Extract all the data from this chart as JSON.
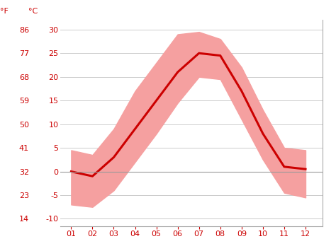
{
  "months": [
    1,
    2,
    3,
    4,
    5,
    6,
    7,
    8,
    9,
    10,
    11,
    12
  ],
  "month_labels": [
    "01",
    "02",
    "03",
    "04",
    "05",
    "06",
    "07",
    "08",
    "09",
    "10",
    "11",
    "12"
  ],
  "avg_temp_c": [
    0.0,
    -1.0,
    3.0,
    9.0,
    15.0,
    21.0,
    25.0,
    24.5,
    17.0,
    8.0,
    1.0,
    0.5
  ],
  "max_temp_c": [
    4.5,
    3.5,
    9.0,
    17.0,
    23.0,
    29.0,
    29.5,
    28.0,
    22.0,
    13.0,
    5.0,
    4.5
  ],
  "min_temp_c": [
    -7.0,
    -7.5,
    -4.0,
    2.0,
    8.0,
    14.5,
    20.0,
    19.5,
    11.0,
    2.5,
    -4.5,
    -5.5
  ],
  "line_color": "#cc0000",
  "fill_color": "#f5a0a0",
  "zero_line_color": "#999999",
  "background_color": "#ffffff",
  "grid_color": "#cccccc",
  "yticks_c": [
    -10,
    -5,
    0,
    5,
    10,
    15,
    20,
    25,
    30
  ],
  "yticks_f": [
    14,
    23,
    32,
    41,
    50,
    59,
    68,
    77,
    86
  ],
  "ylim_c": [
    -11.5,
    32.0
  ],
  "xlim": [
    0.5,
    12.8
  ],
  "label_color": "#cc0000",
  "axis_color": "#aaaaaa",
  "label_fontsize": 8,
  "tick_fontsize": 8,
  "line_width": 2.2
}
